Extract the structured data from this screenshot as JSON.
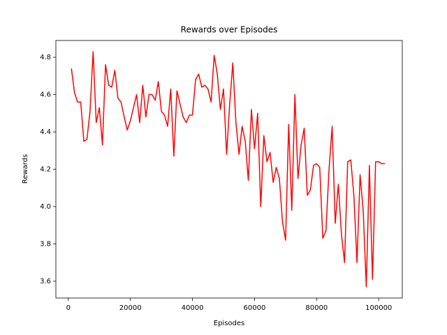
{
  "chart_data": {
    "type": "line",
    "title": "Rewards over Episodes",
    "x_label": "Episodes",
    "y_label": "Rewards",
    "x": [
      1000,
      2000,
      3000,
      4000,
      5000,
      6000,
      7000,
      8000,
      9000,
      10000,
      11000,
      12000,
      13000,
      14000,
      15000,
      16000,
      17000,
      18000,
      19000,
      20000,
      21000,
      22000,
      23000,
      24000,
      25000,
      26000,
      27000,
      28000,
      29000,
      30000,
      31000,
      32000,
      33000,
      34000,
      35000,
      36000,
      37000,
      38000,
      39000,
      40000,
      41000,
      42000,
      43000,
      44000,
      45000,
      46000,
      47000,
      48000,
      49000,
      50000,
      51000,
      52000,
      53000,
      54000,
      55000,
      56000,
      57000,
      58000,
      59000,
      60000,
      61000,
      62000,
      63000,
      64000,
      65000,
      66000,
      67000,
      68000,
      69000,
      70000,
      71000,
      72000,
      73000,
      74000,
      75000,
      76000,
      77000,
      78000,
      79000,
      80000,
      81000,
      82000,
      83000,
      84000,
      85000,
      86000,
      87000,
      88000,
      89000,
      90000,
      91000,
      92000,
      93000,
      94000,
      95000,
      96000,
      97000,
      98000,
      99000,
      100000,
      101000,
      102000
    ],
    "series": [
      {
        "name": "Rewards",
        "color": "#ff0000",
        "values": [
          4.74,
          4.61,
          4.56,
          4.56,
          4.35,
          4.36,
          4.51,
          4.83,
          4.45,
          4.53,
          4.33,
          4.76,
          4.65,
          4.64,
          4.73,
          4.58,
          4.56,
          4.48,
          4.41,
          4.46,
          4.53,
          4.6,
          4.45,
          4.65,
          4.48,
          4.6,
          4.6,
          4.57,
          4.67,
          4.51,
          4.49,
          4.43,
          4.63,
          4.27,
          4.62,
          4.55,
          4.48,
          4.45,
          4.49,
          4.49,
          4.68,
          4.71,
          4.64,
          4.65,
          4.63,
          4.56,
          4.81,
          4.71,
          4.52,
          4.63,
          4.28,
          4.55,
          4.77,
          4.45,
          4.28,
          4.43,
          4.35,
          4.14,
          4.52,
          4.31,
          4.5,
          4.0,
          4.38,
          4.24,
          4.29,
          4.13,
          4.21,
          4.15,
          3.92,
          3.82,
          4.44,
          3.98,
          4.6,
          4.15,
          4.33,
          4.42,
          4.06,
          4.09,
          4.22,
          4.23,
          4.21,
          3.83,
          3.87,
          4.2,
          4.43,
          3.91,
          4.12,
          3.85,
          3.7,
          4.24,
          4.25,
          4.06,
          3.7,
          4.17,
          3.98,
          3.57,
          4.22,
          3.61,
          4.24,
          4.24,
          4.23,
          4.23
        ]
      }
    ],
    "xlim": [
      -4000,
      107600
    ],
    "ylim": [
      3.51,
      4.89
    ],
    "xticks": [
      0,
      20000,
      40000,
      60000,
      80000,
      100000
    ],
    "yticks": [
      3.6,
      3.8,
      {
        "value": 4,
        "label": "4.0"
      },
      4.2,
      4.4,
      4.6,
      4.8
    ]
  }
}
